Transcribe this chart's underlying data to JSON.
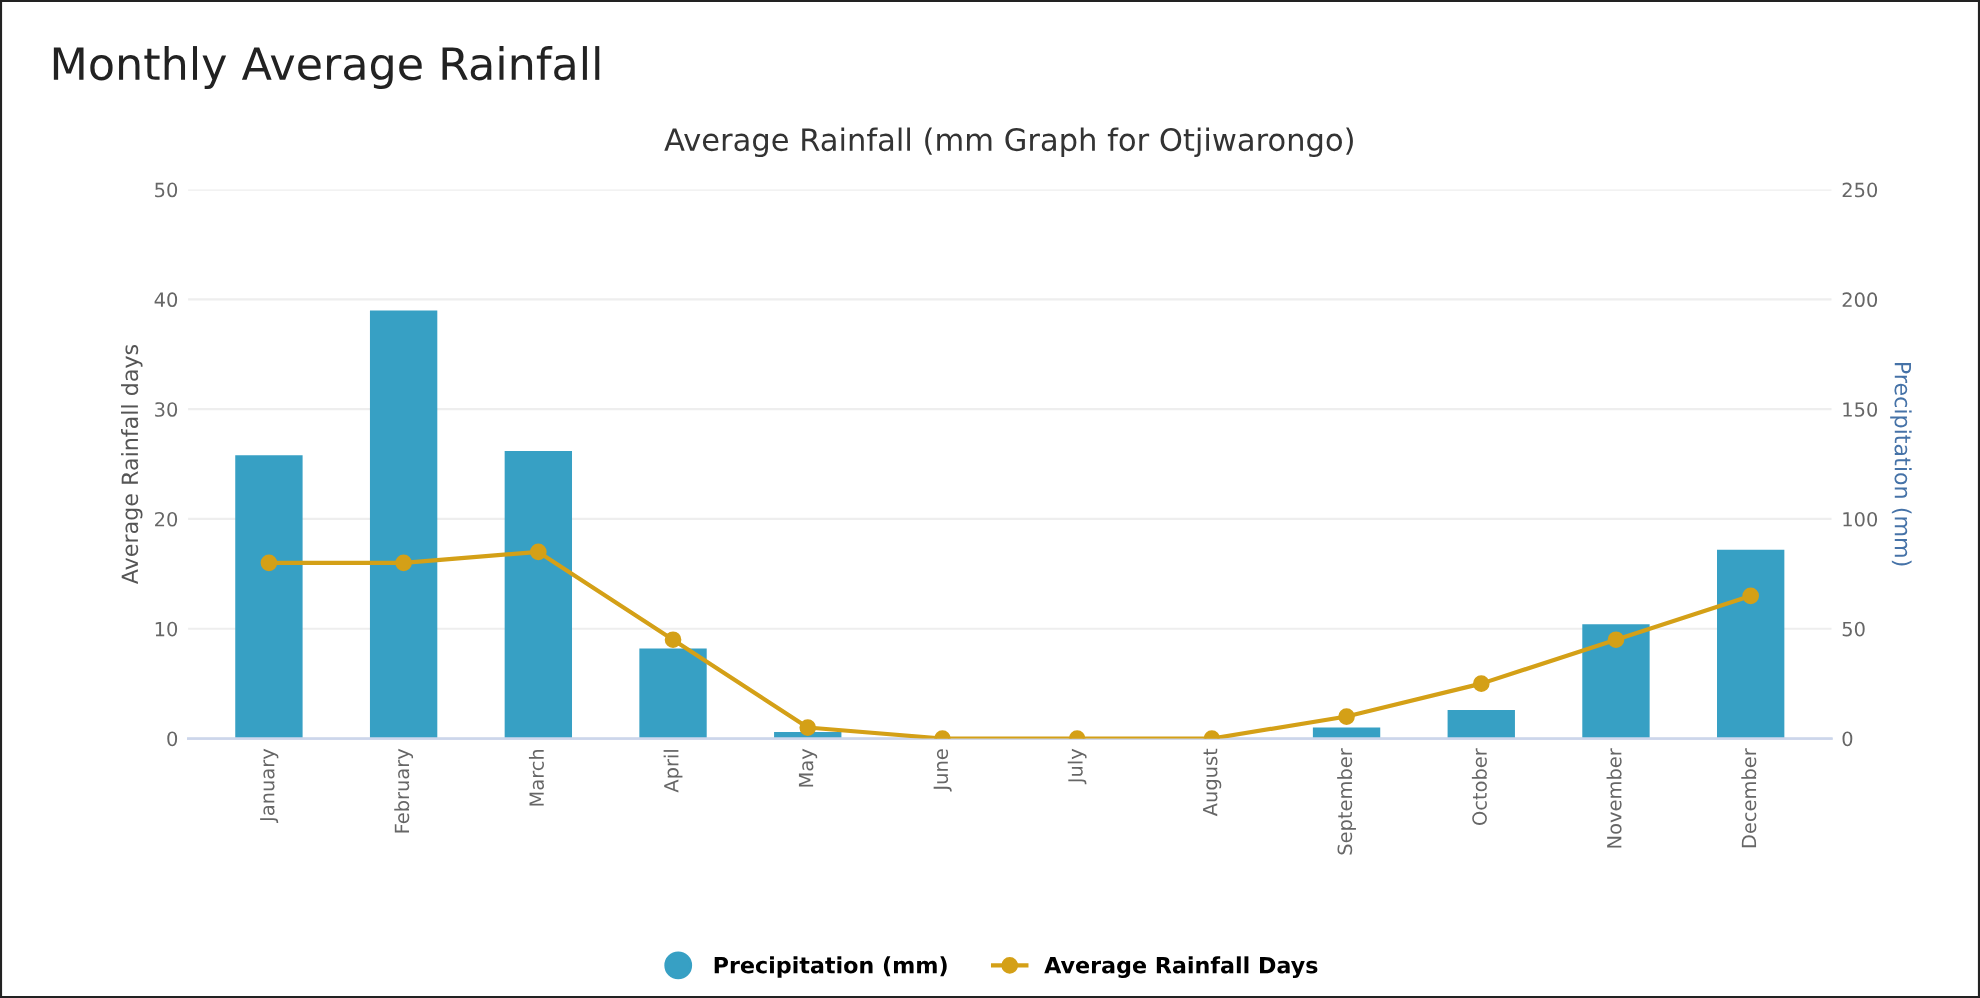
{
  "chart_data": {
    "type": "bar",
    "title": "Average Rainfall (mm Graph for Otjiwarongo)",
    "annotations": [
      "Monthly Average Rainfall"
    ],
    "categories": [
      "January",
      "February",
      "March",
      "April",
      "May",
      "June",
      "July",
      "August",
      "September",
      "October",
      "November",
      "December"
    ],
    "series": [
      {
        "name": "Precipitation (mm)",
        "axis": "y2",
        "color": "#37a0c4",
        "values": [
          129,
          195,
          131,
          41,
          3,
          0,
          0,
          0,
          5,
          13,
          52,
          86
        ]
      },
      {
        "name": "Average Rainfall Days",
        "type": "line",
        "color": "#d4a017",
        "marker": "circle",
        "values": [
          16,
          16,
          17,
          9,
          1,
          0,
          0,
          0,
          2,
          5,
          9,
          13
        ]
      }
    ],
    "ylabel": "Average Rainfall days",
    "y2label": "Precipitation (mm)",
    "ylim": [
      0,
      50
    ],
    "yticks": [
      0,
      10,
      20,
      30,
      40,
      50
    ],
    "y2lim": [
      0,
      250
    ],
    "y2ticks": [
      0,
      50,
      100,
      150,
      200,
      250
    ],
    "grid": "y",
    "legend": "bottom"
  }
}
